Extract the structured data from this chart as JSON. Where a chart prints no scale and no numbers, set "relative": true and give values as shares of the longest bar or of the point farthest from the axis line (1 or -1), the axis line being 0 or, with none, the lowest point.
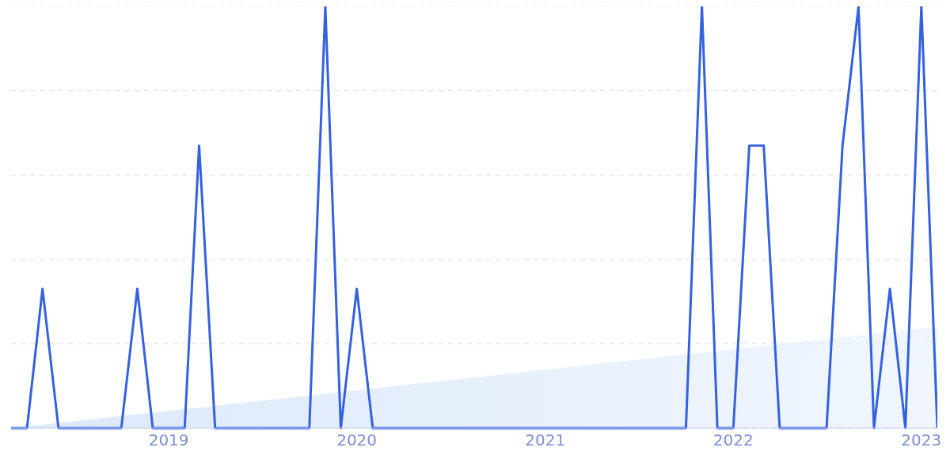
{
  "chart_data": {
    "type": "line",
    "relative": true,
    "grid": "y",
    "tick_labels": "x",
    "marker": "none",
    "line_style": "solid",
    "x": [
      "2018-03",
      "2018-04",
      "2018-05",
      "2018-06",
      "2018-07",
      "2018-08",
      "2018-09",
      "2018-10",
      "2018-11",
      "2018-12",
      "2019-01",
      "2019-02",
      "2019-03",
      "2019-04",
      "2019-05",
      "2019-06",
      "2019-07",
      "2019-08",
      "2019-09",
      "2019-10",
      "2019-11",
      "2019-12",
      "2020-01",
      "2020-02",
      "2020-03",
      "2020-04",
      "2020-05",
      "2020-06",
      "2020-07",
      "2020-08",
      "2020-09",
      "2020-10",
      "2020-11",
      "2020-12",
      "2021-01",
      "2021-02",
      "2021-03",
      "2021-04",
      "2021-05",
      "2021-06",
      "2021-07",
      "2021-08",
      "2021-09",
      "2021-10",
      "2021-11",
      "2021-12",
      "2022-01",
      "2022-02",
      "2022-03",
      "2022-04",
      "2022-05",
      "2022-06",
      "2022-07",
      "2022-08",
      "2022-09",
      "2022-10",
      "2022-11",
      "2022-12",
      "2023-01",
      "2023-02"
    ],
    "xlim": [
      "2018-03",
      "2023-02"
    ],
    "xticks": [
      {
        "value": "2019-01",
        "label": "2019"
      },
      {
        "value": "2020-01",
        "label": "2020"
      },
      {
        "value": "2021-01",
        "label": "2021"
      },
      {
        "value": "2022-01",
        "label": "2022"
      },
      {
        "value": "2023-01",
        "label": "2023"
      }
    ],
    "series": [
      {
        "color": "#3461e0",
        "values": [
          0,
          0,
          0.33,
          0,
          0,
          0,
          0,
          0,
          0.33,
          0,
          0,
          0,
          0.67,
          0,
          0,
          0,
          0,
          0,
          0,
          0,
          1,
          0,
          0.33,
          0,
          0,
          0,
          0,
          0,
          0,
          0,
          0,
          0,
          0,
          0,
          0,
          0,
          0,
          0,
          0,
          0,
          0,
          0,
          0,
          0,
          1,
          0,
          0,
          0.67,
          0.67,
          0,
          0,
          0,
          0,
          0.67,
          1,
          0,
          0.33,
          0,
          1,
          0
        ]
      },
      {
        "type": "area",
        "color": "#dce9fb",
        "x": [
          "2018-03",
          "2023-02"
        ],
        "values": [
          0,
          0.24
        ]
      }
    ]
  }
}
